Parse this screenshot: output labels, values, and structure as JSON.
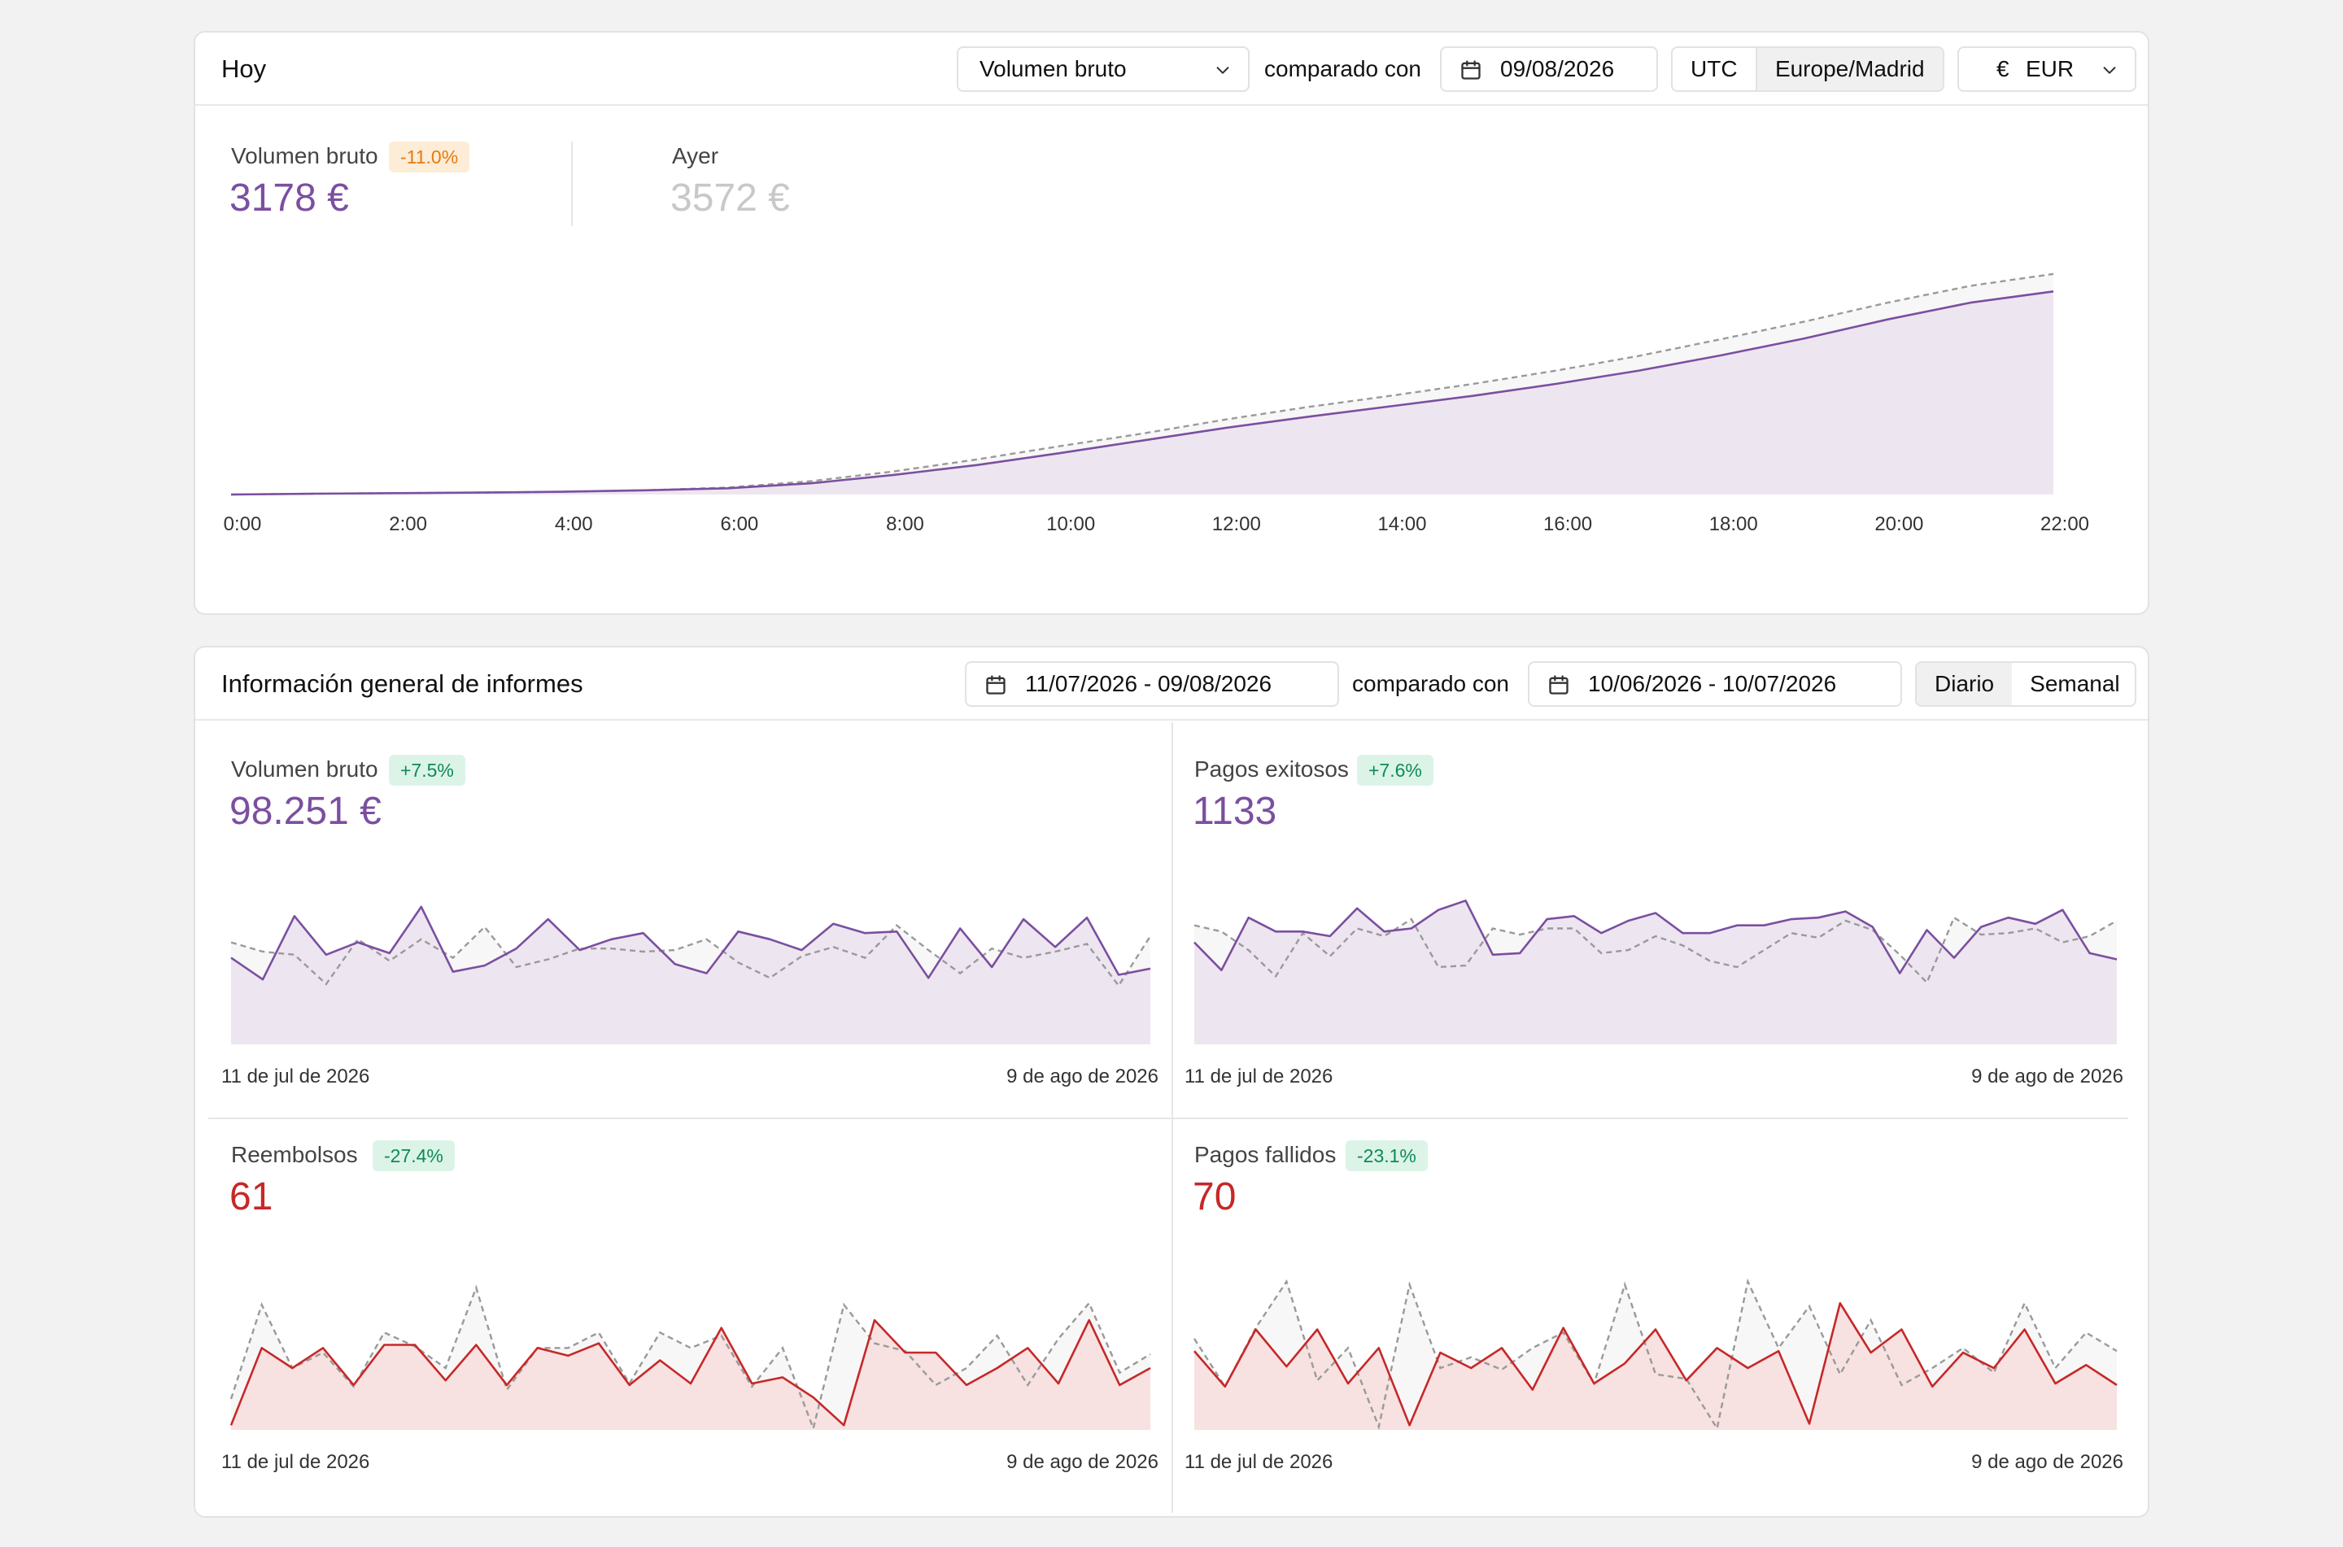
{
  "today": {
    "title": "Hoy",
    "metric_select": "Volumen bruto",
    "compared_with": "comparado con",
    "date": "09/08/2026",
    "timezones": [
      "UTC",
      "Europe/Madrid"
    ],
    "active_timezone": "Europe/Madrid",
    "currency_symbol": "€",
    "currency": "EUR",
    "primary": {
      "label": "Volumen bruto",
      "badge": "-11.0%",
      "value": "3178 €"
    },
    "comparison": {
      "label": "Ayer",
      "value": "3572 €"
    },
    "colors": {
      "primary": "#7b4fa0",
      "comparison": "#999999",
      "fill": "#ede6f0",
      "badge": "#e47b10"
    }
  },
  "reports": {
    "title": "Información general de informes",
    "date_range": "11/07/2026 - 09/08/2026",
    "compared_with": "comparado con",
    "compare_range": "10/06/2026 - 10/07/2026",
    "granularity": [
      "Diario",
      "Semanal"
    ],
    "active_granularity": "Diario",
    "panels": [
      {
        "label": "Volumen bruto",
        "badge": "+7.5%",
        "value": "98.251 €",
        "start": "11 de jul de 2026",
        "end": "9 de ago de 2026",
        "color": "#7b4fa0"
      },
      {
        "label": "Pagos exitosos",
        "badge": "+7.6%",
        "value": "1133",
        "start": "11 de jul de 2026",
        "end": "9 de ago de 2026",
        "color": "#7b4fa0"
      },
      {
        "label": "Reembolsos",
        "badge": "-27.4%",
        "value": "61",
        "start": "11 de jul de 2026",
        "end": "9 de ago de 2026",
        "color": "#c62828"
      },
      {
        "label": "Pagos fallidos",
        "badge": "-23.1%",
        "value": "70",
        "start": "11 de jul de 2026",
        "end": "9 de ago de 2026",
        "color": "#c62828"
      }
    ]
  },
  "chart_data": [
    {
      "type": "area",
      "x": [
        "0:00",
        "1:00",
        "2:00",
        "3:00",
        "4:00",
        "5:00",
        "6:00",
        "7:00",
        "8:00",
        "9:00",
        "10:00",
        "11:00",
        "12:00",
        "13:00",
        "14:00",
        "15:00",
        "16:00",
        "17:00",
        "18:00",
        "19:00",
        "20:00",
        "21:00",
        "22:00"
      ],
      "xticks": [
        "0:00",
        "2:00",
        "4:00",
        "6:00",
        "8:00",
        "10:00",
        "12:00",
        "14:00",
        "16:00",
        "18:00",
        "20:00",
        "22:00"
      ],
      "ylim": [
        0,
        3600
      ],
      "series": [
        {
          "values": [
            0,
            12,
            20,
            28,
            40,
            60,
            90,
            160,
            280,
            420,
            590,
            770,
            950,
            1110,
            1260,
            1410,
            1580,
            1770,
            1990,
            2230,
            2500,
            2740,
            2900
          ]
        },
        {
          "values": [
            0,
            12,
            20,
            28,
            40,
            60,
            100,
            190,
            330,
            500,
            690,
            870,
            1070,
            1250,
            1410,
            1580,
            1770,
            1980,
            2220,
            2470,
            2740,
            2980,
            3150
          ]
        }
      ]
    },
    {
      "type": "area",
      "ylim": [
        0,
        10
      ],
      "series": [
        {
          "values": [
            5.6,
            4.2,
            8.3,
            5.8,
            6.6,
            5.9,
            8.9,
            4.7,
            5.1,
            6.2,
            8.1,
            6.1,
            6.8,
            7.2,
            5.2,
            4.6,
            7.3,
            6.8,
            6.1,
            7.8,
            7.2,
            7.3,
            4.3,
            7.5,
            5.0,
            8.1,
            6.3,
            8.2,
            4.5,
            4.9
          ]
        },
        {
          "values": [
            6.6,
            6.0,
            5.8,
            3.9,
            6.8,
            5.4,
            6.8,
            5.6,
            7.6,
            5.0,
            5.5,
            6.2,
            6.2,
            6.0,
            6.1,
            6.8,
            5.3,
            4.3,
            5.7,
            6.3,
            5.6,
            7.7,
            6.1,
            4.6,
            6.2,
            5.6,
            6.0,
            6.5,
            3.8,
            7.0
          ]
        }
      ]
    },
    {
      "type": "area",
      "ylim": [
        0,
        10
      ],
      "series": [
        {
          "values": [
            6.6,
            4.8,
            8.2,
            7.3,
            7.3,
            7.0,
            8.8,
            7.3,
            7.5,
            8.7,
            9.3,
            5.8,
            5.9,
            8.1,
            8.3,
            7.2,
            8.0,
            8.5,
            7.2,
            7.2,
            7.7,
            7.7,
            8.1,
            8.2,
            8.6,
            7.6,
            4.6,
            7.4,
            5.6,
            7.6,
            8.2,
            7.8,
            8.7,
            5.9,
            5.5
          ]
        },
        {
          "values": [
            7.7,
            7.3,
            6.1,
            4.4,
            7.2,
            5.7,
            7.5,
            7.0,
            8.1,
            5.0,
            5.1,
            7.5,
            7.1,
            7.5,
            7.5,
            5.9,
            6.1,
            7.0,
            6.4,
            5.4,
            5.0,
            6.1,
            7.2,
            6.9,
            8.0,
            7.4,
            5.8,
            4.0,
            8.2,
            7.1,
            7.2,
            7.5,
            6.6,
            7.0,
            8.0
          ]
        }
      ]
    },
    {
      "type": "area",
      "ylim": [
        0,
        10
      ],
      "series": [
        {
          "values": [
            0.3,
            5.3,
            4.0,
            5.3,
            2.9,
            5.5,
            5.5,
            3.2,
            5.5,
            2.9,
            5.3,
            4.8,
            5.6,
            2.9,
            4.5,
            3.0,
            6.6,
            3.0,
            3.4,
            2.1,
            0.3,
            7.1,
            5.0,
            5.0,
            2.9,
            4.0,
            5.3,
            3.0,
            7.1,
            2.9,
            4.0
          ]
        },
        {
          "values": [
            2.0,
            8.1,
            4.0,
            5.0,
            2.8,
            6.3,
            5.4,
            4.0,
            9.2,
            2.6,
            5.3,
            5.3,
            6.3,
            3.0,
            6.3,
            5.3,
            6.1,
            2.8,
            5.3,
            0.1,
            8.1,
            5.6,
            5.1,
            2.9,
            4.0,
            6.1,
            2.9,
            5.9,
            8.2,
            3.7,
            4.9
          ]
        }
      ]
    },
    {
      "type": "area",
      "ylim": [
        0,
        10
      ],
      "series": [
        {
          "values": [
            5.1,
            2.8,
            6.5,
            4.1,
            6.5,
            3.0,
            5.3,
            0.3,
            5.0,
            4.0,
            5.3,
            2.6,
            6.6,
            3.0,
            4.3,
            6.5,
            3.2,
            5.3,
            4.0,
            5.1,
            0.4,
            8.2,
            5.0,
            6.5,
            2.8,
            5.0,
            4.0,
            6.5,
            3.0,
            4.2,
            2.9
          ]
        },
        {
          "values": [
            5.9,
            2.8,
            6.6,
            9.6,
            3.2,
            5.3,
            0.2,
            9.4,
            4.0,
            4.7,
            3.9,
            5.3,
            6.3,
            3.0,
            9.4,
            3.6,
            3.3,
            0.1,
            9.6,
            5.3,
            8.0,
            3.6,
            7.1,
            2.9,
            4.0,
            5.3,
            3.7,
            8.2,
            4.0,
            6.3,
            5.1
          ]
        }
      ]
    }
  ]
}
